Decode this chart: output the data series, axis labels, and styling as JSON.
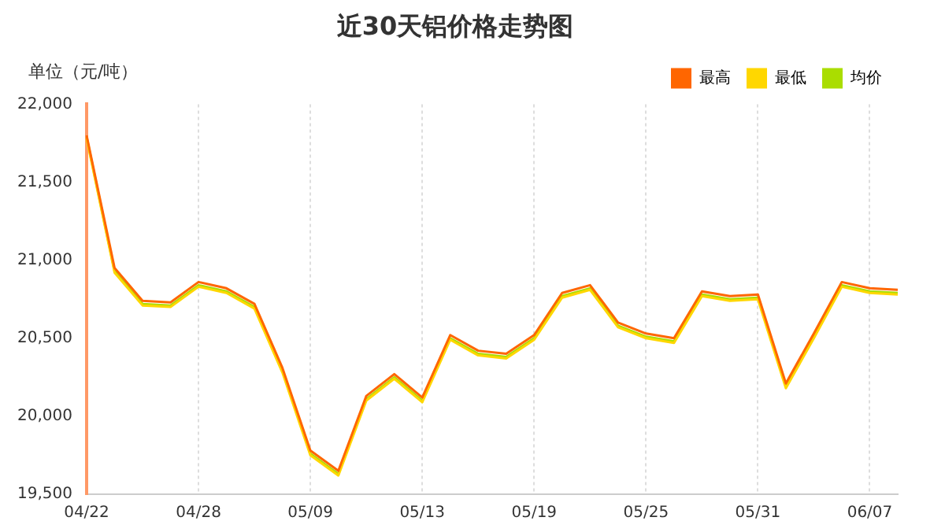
{
  "chart_data": {
    "type": "line",
    "title": "近30天铝价格走势图",
    "ylabel": "单位（元/吨）",
    "categories": [
      "04/22",
      null,
      null,
      null,
      "04/28",
      null,
      null,
      null,
      "05/09",
      null,
      null,
      null,
      "05/13",
      null,
      null,
      null,
      "05/19",
      null,
      null,
      null,
      "05/25",
      null,
      null,
      null,
      "05/31",
      null,
      null,
      null,
      "06/07",
      null
    ],
    "series": [
      {
        "name": "最高",
        "color": "#ff6600",
        "values": [
          21800,
          20950,
          20740,
          20730,
          20860,
          20820,
          20720,
          20310,
          19780,
          19650,
          20130,
          20270,
          20120,
          20520,
          20420,
          20400,
          20520,
          20790,
          20840,
          20600,
          20530,
          20500,
          20800,
          20770,
          20780,
          20210,
          20530,
          20860,
          20820,
          20810
        ]
      },
      {
        "name": "最低",
        "color": "#ffd700",
        "values": [
          21780,
          20920,
          20710,
          20700,
          20830,
          20790,
          20690,
          20280,
          19750,
          19620,
          20100,
          20240,
          20090,
          20490,
          20390,
          20370,
          20490,
          20760,
          20810,
          20570,
          20500,
          20470,
          20770,
          20740,
          20750,
          20180,
          20500,
          20830,
          20790,
          20780
        ]
      },
      {
        "name": "均价",
        "color": "#aadd00",
        "values": [
          21790,
          20930,
          20720,
          20710,
          20840,
          20800,
          20700,
          20290,
          19760,
          19630,
          20110,
          20250,
          20100,
          20500,
          20400,
          20380,
          20500,
          20770,
          20820,
          20580,
          20510,
          20480,
          20780,
          20750,
          20760,
          20190,
          20510,
          20840,
          20800,
          20790
        ]
      }
    ],
    "ylim": [
      19500,
      22000
    ],
    "yticks": [
      {
        "value": 19500,
        "label": "19,500"
      },
      {
        "value": 20000,
        "label": "20,000"
      },
      {
        "value": 20500,
        "label": "20,500"
      },
      {
        "value": 21000,
        "label": "21,000"
      },
      {
        "value": 21500,
        "label": "21,500"
      },
      {
        "value": 22000,
        "label": "22,000"
      }
    ],
    "grid": "x",
    "legend": "top right",
    "marker": "none",
    "line_style": "solid"
  }
}
